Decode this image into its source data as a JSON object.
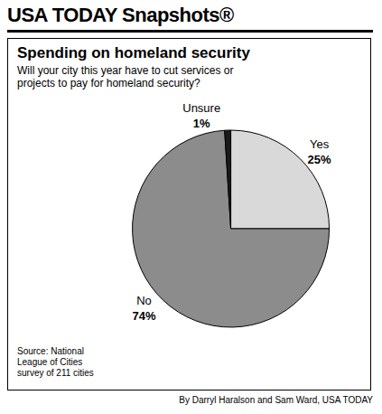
{
  "header": "USA TODAY Snapshots®",
  "chart_data": {
    "type": "pie",
    "title": "Spending on homeland security",
    "subtitle": "Will your city this year have to cut services or projects to pay for homeland security?",
    "categories": [
      "Yes",
      "No",
      "Unsure"
    ],
    "values": [
      25,
      74,
      1
    ],
    "value_labels": [
      "25%",
      "74%",
      "1%"
    ],
    "colors": [
      "#d9d9d9",
      "#8c8c8c",
      "#1a1a1a"
    ],
    "data_labels": true
  },
  "source": "Source: National League of Cities survey of 211 cities",
  "credit": "By Darryl Haralson and Sam Ward, USA TODAY"
}
